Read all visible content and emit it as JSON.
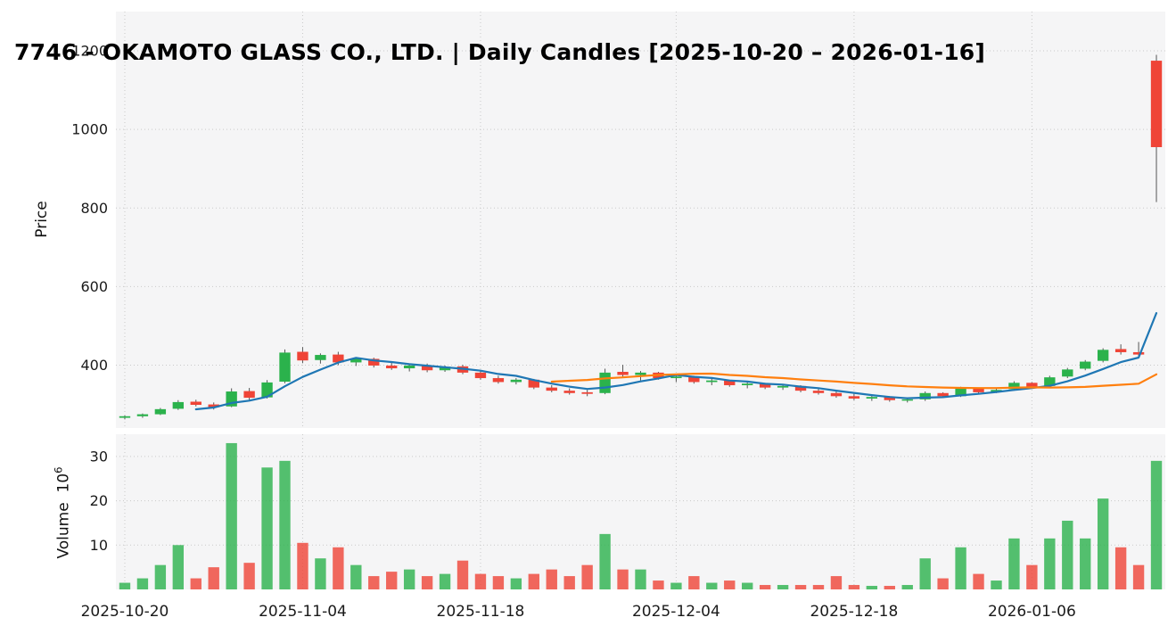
{
  "title": "7746 - OKAMOTO GLASS CO., LTD. | Daily Candles [2025-10-20 – 2026-01-16]",
  "colors": {
    "up": "#2bb24c",
    "down": "#ef4437",
    "sma_short": "#1f77b4",
    "sma_long": "#ff7f0e",
    "wick": "#555555",
    "panel_bg": "#f5f5f6",
    "grid": "#c9c9c9",
    "text": "#1a1a1a"
  },
  "price_axis": {
    "label": "Price",
    "ticks": [
      400,
      600,
      800,
      1000,
      1200
    ],
    "ylim": [
      240,
      1300
    ]
  },
  "volume_axis": {
    "label": "Volume",
    "unit_base": "10",
    "unit_exp": "6",
    "ticks": [
      10,
      20,
      30
    ],
    "ylim": [
      0,
      35
    ]
  },
  "x_axis": {
    "ticks": [
      {
        "index": 0,
        "label": "2025-10-20"
      },
      {
        "index": 10,
        "label": "2025-11-04"
      },
      {
        "index": 20,
        "label": "2025-11-18"
      },
      {
        "index": 31,
        "label": "2025-12-04"
      },
      {
        "index": 41,
        "label": "2025-12-18"
      },
      {
        "index": 51,
        "label": "2026-01-06"
      }
    ]
  },
  "chart_data": {
    "type": "candlestick",
    "panels": [
      "price",
      "volume"
    ],
    "volume_units": "millions of shares",
    "volume_color_rule": "close_vs_prev_close",
    "overlays": [
      {
        "name": "SMA5",
        "period": 5,
        "color_key": "sma_short"
      },
      {
        "name": "SMA25",
        "period": 25,
        "color_key": "sma_long"
      }
    ],
    "columns": [
      "date",
      "open",
      "high",
      "low",
      "close",
      "volume_millions"
    ],
    "rows": [
      [
        "2025-10-20",
        266,
        272,
        262,
        270,
        1.5
      ],
      [
        "2025-10-21",
        270,
        277,
        266,
        275,
        2.5
      ],
      [
        "2025-10-22",
        275,
        291,
        273,
        288,
        5.5
      ],
      [
        "2025-10-23",
        289,
        311,
        286,
        306,
        10.0
      ],
      [
        "2025-10-24",
        307,
        312,
        295,
        299,
        2.5
      ],
      [
        "2025-10-27",
        300,
        305,
        287,
        293,
        5.0
      ],
      [
        "2025-10-28",
        295,
        341,
        293,
        333,
        33.0
      ],
      [
        "2025-10-29",
        334,
        342,
        311,
        317,
        6.0
      ],
      [
        "2025-10-30",
        318,
        362,
        315,
        356,
        27.5
      ],
      [
        "2025-10-31",
        358,
        440,
        354,
        432,
        29.0
      ],
      [
        "2025-11-04",
        434,
        446,
        405,
        412,
        10.5
      ],
      [
        "2025-11-05",
        413,
        430,
        404,
        426,
        7.0
      ],
      [
        "2025-11-06",
        427,
        434,
        400,
        407,
        9.5
      ],
      [
        "2025-11-07",
        407,
        420,
        398,
        416,
        5.5
      ],
      [
        "2025-11-10",
        416,
        419,
        394,
        399,
        3.0
      ],
      [
        "2025-11-11",
        399,
        407,
        388,
        392,
        4.0
      ],
      [
        "2025-11-12",
        392,
        402,
        384,
        399,
        4.5
      ],
      [
        "2025-11-13",
        399,
        404,
        382,
        387,
        3.0
      ],
      [
        "2025-11-14",
        387,
        399,
        383,
        396,
        3.5
      ],
      [
        "2025-11-17",
        397,
        401,
        377,
        381,
        6.5
      ],
      [
        "2025-11-18",
        381,
        386,
        363,
        367,
        3.5
      ],
      [
        "2025-11-19",
        367,
        373,
        353,
        357,
        3.0
      ],
      [
        "2025-11-20",
        357,
        367,
        351,
        363,
        2.5
      ],
      [
        "2025-11-21",
        363,
        365,
        339,
        343,
        3.5
      ],
      [
        "2025-11-25",
        343,
        349,
        331,
        335,
        4.5
      ],
      [
        "2025-11-26",
        335,
        341,
        325,
        329,
        3.0
      ],
      [
        "2025-11-27",
        331,
        337,
        321,
        327,
        5.5
      ],
      [
        "2025-11-28",
        329,
        391,
        326,
        381,
        12.5
      ],
      [
        "2025-12-01",
        383,
        401,
        369,
        375,
        4.5
      ],
      [
        "2025-12-02",
        375,
        385,
        361,
        381,
        4.5
      ],
      [
        "2025-12-03",
        381,
        383,
        363,
        367,
        2.0
      ],
      [
        "2025-12-04",
        367,
        375,
        357,
        371,
        1.5
      ],
      [
        "2025-12-05",
        371,
        373,
        353,
        357,
        3.0
      ],
      [
        "2025-12-08",
        357,
        365,
        349,
        361,
        1.5
      ],
      [
        "2025-12-09",
        361,
        363,
        345,
        349,
        2.0
      ],
      [
        "2025-12-10",
        349,
        357,
        341,
        353,
        1.5
      ],
      [
        "2025-12-11",
        353,
        355,
        339,
        343,
        1.0
      ],
      [
        "2025-12-12",
        343,
        351,
        337,
        347,
        1.0
      ],
      [
        "2025-12-15",
        347,
        349,
        331,
        335,
        1.0
      ],
      [
        "2025-12-16",
        335,
        341,
        325,
        329,
        1.0
      ],
      [
        "2025-12-17",
        329,
        333,
        317,
        321,
        3.0
      ],
      [
        "2025-12-18",
        321,
        327,
        311,
        315,
        1.0
      ],
      [
        "2025-12-19",
        315,
        323,
        309,
        319,
        0.8
      ],
      [
        "2025-12-22",
        319,
        321,
        307,
        311,
        0.8
      ],
      [
        "2025-12-23",
        311,
        317,
        305,
        313,
        1.0
      ],
      [
        "2025-12-24",
        313,
        333,
        309,
        329,
        7.0
      ],
      [
        "2025-12-25",
        329,
        331,
        317,
        321,
        2.5
      ],
      [
        "2025-12-26",
        321,
        345,
        319,
        341,
        9.5
      ],
      [
        "2025-12-29",
        341,
        343,
        327,
        331,
        3.5
      ],
      [
        "2025-12-30",
        331,
        341,
        329,
        337,
        2.0
      ],
      [
        "2026-01-05",
        339,
        359,
        335,
        355,
        11.5
      ],
      [
        "2026-01-06",
        355,
        357,
        341,
        345,
        5.5
      ],
      [
        "2026-01-07",
        347,
        373,
        345,
        369,
        11.5
      ],
      [
        "2026-01-08",
        371,
        393,
        367,
        389,
        15.5
      ],
      [
        "2026-01-09",
        391,
        413,
        387,
        409,
        11.5
      ],
      [
        "2026-01-13",
        411,
        443,
        407,
        439,
        20.5
      ],
      [
        "2026-01-14",
        441,
        453,
        427,
        433,
        9.5
      ],
      [
        "2026-01-15",
        433,
        459,
        421,
        427,
        5.5
      ],
      [
        "2026-01-16",
        1175,
        1190,
        815,
        955,
        29.0
      ]
    ]
  }
}
